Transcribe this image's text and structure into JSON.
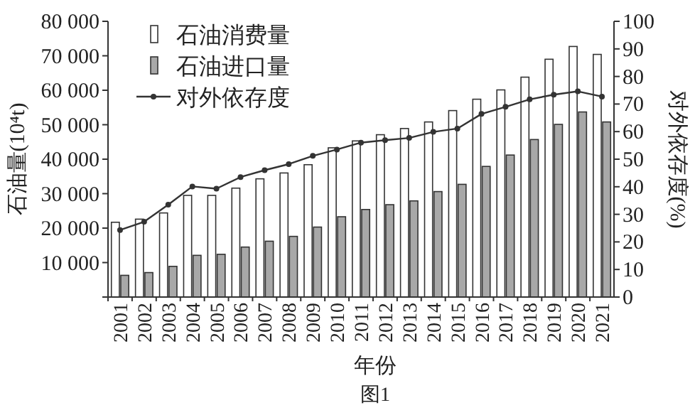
{
  "chart_data": {
    "type": "bar",
    "xlabel": "年份",
    "ylabel": "石油量(10⁴t)",
    "y2label": "对外依存度(%)",
    "categories": [
      "2001",
      "2002",
      "2003",
      "2004",
      "2005",
      "2006",
      "2007",
      "2008",
      "2009",
      "2010",
      "2011",
      "2012",
      "2013",
      "2014",
      "2015",
      "2016",
      "2017",
      "2018",
      "2019",
      "2020",
      "2021"
    ],
    "series": [
      {
        "name": "石油消费量",
        "color": "#ffffff",
        "values": [
          21700,
          22600,
          24400,
          29500,
          29500,
          31600,
          34300,
          36000,
          38400,
          43300,
          45300,
          47100,
          48900,
          50800,
          54100,
          57400,
          60100,
          63800,
          69000,
          72700,
          70400
        ]
      },
      {
        "name": "石油进口量",
        "color": "#a8a8a8",
        "values": [
          6300,
          7100,
          8900,
          12100,
          12400,
          14500,
          16200,
          17600,
          20300,
          23300,
          25400,
          26800,
          27900,
          30600,
          32700,
          37900,
          41200,
          45700,
          50100,
          53700,
          50800
        ]
      },
      {
        "name": "对外依存度",
        "type": "line",
        "axis": "y2",
        "color": "#333333",
        "marker": "circle",
        "values": [
          24.3,
          27.3,
          33.5,
          40.1,
          39.3,
          43.5,
          46,
          48.2,
          51.2,
          53.5,
          56,
          56.9,
          57.7,
          59.9,
          61.1,
          66.4,
          69,
          71.7,
          73.4,
          74.6,
          72.7
        ]
      }
    ],
    "ylim": [
      0,
      80000
    ],
    "yticks": [
      {
        "value": 0,
        "label": null
      },
      {
        "value": 10000,
        "label": "10 000"
      },
      {
        "value": 20000,
        "label": "20 000"
      },
      {
        "value": 30000,
        "label": "30 000"
      },
      {
        "value": 40000,
        "label": "40 000"
      },
      {
        "value": 50000,
        "label": "50 000"
      },
      {
        "value": 60000,
        "label": "60 000"
      },
      {
        "value": 70000,
        "label": "70 000"
      },
      {
        "value": 80000,
        "label": "80 000"
      }
    ],
    "y2lim": [
      0,
      100
    ],
    "y2ticks": [
      0,
      10,
      20,
      30,
      40,
      50,
      60,
      70,
      80,
      90,
      100
    ],
    "legend": "top left",
    "annotations": [
      "图1"
    ]
  }
}
